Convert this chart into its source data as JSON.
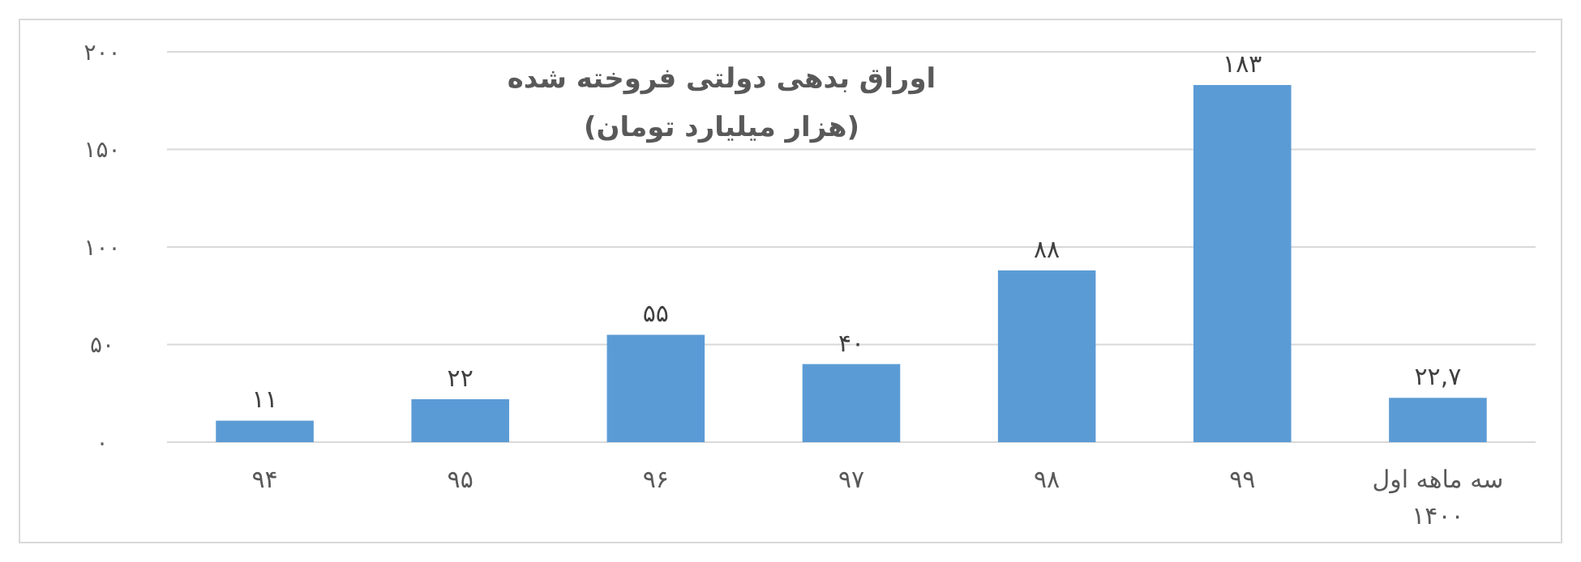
{
  "chart_data": {
    "type": "bar",
    "title": "اوراق بدهی دولتی فروخته شده",
    "subtitle": "(هزار میلیارد تومان)",
    "categories": [
      "۹۴",
      "۹۵",
      "۹۶",
      "۹۷",
      "۹۸",
      "۹۹",
      "سه ماهه اول\n۱۴۰۰"
    ],
    "values": [
      11,
      22,
      55,
      40,
      88,
      183,
      22.7
    ],
    "value_labels": [
      "۱۱",
      "۲۲",
      "۵۵",
      "۴۰",
      "۸۸",
      "۱۸۳",
      "۲۲,۷"
    ],
    "color": "#5b9bd5",
    "ylim": [
      0,
      200
    ],
    "yticks": [
      {
        "value": 0,
        "label": "۰"
      },
      {
        "value": 50,
        "label": "۵۰"
      },
      {
        "value": 100,
        "label": "۱۰۰"
      },
      {
        "value": 150,
        "label": "۱۵۰"
      },
      {
        "value": 200,
        "label": "۲۰۰"
      }
    ],
    "grid": "y"
  }
}
